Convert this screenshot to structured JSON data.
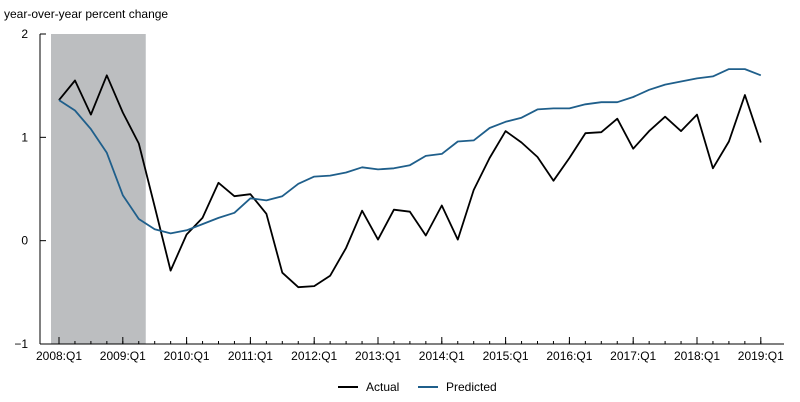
{
  "chart_data": {
    "type": "line",
    "title": "",
    "ylabel": "year-over-year percent change",
    "xlabel": "",
    "ylim": [
      -1,
      2
    ],
    "yticks": [
      -1,
      0,
      1,
      2
    ],
    "xticks": [
      "2008:Q1",
      "2009:Q1",
      "2010:Q1",
      "2011:Q1",
      "2012:Q1",
      "2013:Q1",
      "2014:Q1",
      "2015:Q1",
      "2016:Q1",
      "2017:Q1",
      "2018:Q1",
      "2019:Q1"
    ],
    "quarters": [
      "2008:Q1",
      "2008:Q2",
      "2008:Q3",
      "2008:Q4",
      "2009:Q1",
      "2009:Q2",
      "2009:Q3",
      "2009:Q4",
      "2010:Q1",
      "2010:Q2",
      "2010:Q3",
      "2010:Q4",
      "2011:Q1",
      "2011:Q2",
      "2011:Q3",
      "2011:Q4",
      "2012:Q1",
      "2012:Q2",
      "2012:Q3",
      "2012:Q4",
      "2013:Q1",
      "2013:Q2",
      "2013:Q3",
      "2013:Q4",
      "2014:Q1",
      "2014:Q2",
      "2014:Q3",
      "2014:Q4",
      "2015:Q1",
      "2015:Q2",
      "2015:Q3",
      "2015:Q4",
      "2016:Q1",
      "2016:Q2",
      "2016:Q3",
      "2016:Q4",
      "2017:Q1",
      "2017:Q2",
      "2017:Q3",
      "2017:Q4",
      "2018:Q1",
      "2018:Q2",
      "2018:Q3",
      "2018:Q4",
      "2019:Q1"
    ],
    "shaded_region": {
      "start": "2008:Q1",
      "end": "2009:Q2",
      "color": "#bcbec0"
    },
    "series": [
      {
        "name": "Actual",
        "color": "#000000",
        "values": [
          1.36,
          1.55,
          1.22,
          1.6,
          1.24,
          0.94,
          0.33,
          -0.29,
          0.06,
          0.22,
          0.56,
          0.43,
          0.45,
          0.26,
          -0.31,
          -0.45,
          -0.44,
          -0.34,
          -0.07,
          0.29,
          0.01,
          0.3,
          0.28,
          0.05,
          0.34,
          0.01,
          0.49,
          0.8,
          1.06,
          0.95,
          0.81,
          0.58,
          0.8,
          1.04,
          1.05,
          1.18,
          0.89,
          1.06,
          1.2,
          1.06,
          1.22,
          0.7,
          0.96,
          1.41,
          0.95
        ]
      },
      {
        "name": "Predicted",
        "color": "#1f5f8b",
        "values": [
          1.36,
          1.26,
          1.08,
          0.85,
          0.44,
          0.21,
          0.11,
          0.07,
          0.1,
          0.16,
          0.22,
          0.27,
          0.41,
          0.39,
          0.43,
          0.55,
          0.62,
          0.63,
          0.66,
          0.71,
          0.69,
          0.7,
          0.73,
          0.82,
          0.84,
          0.96,
          0.97,
          1.09,
          1.15,
          1.19,
          1.27,
          1.28,
          1.28,
          1.32,
          1.34,
          1.34,
          1.39,
          1.46,
          1.51,
          1.54,
          1.57,
          1.59,
          1.66,
          1.66,
          1.6
        ]
      }
    ],
    "legend_position": "bottom-center",
    "grid": false
  }
}
